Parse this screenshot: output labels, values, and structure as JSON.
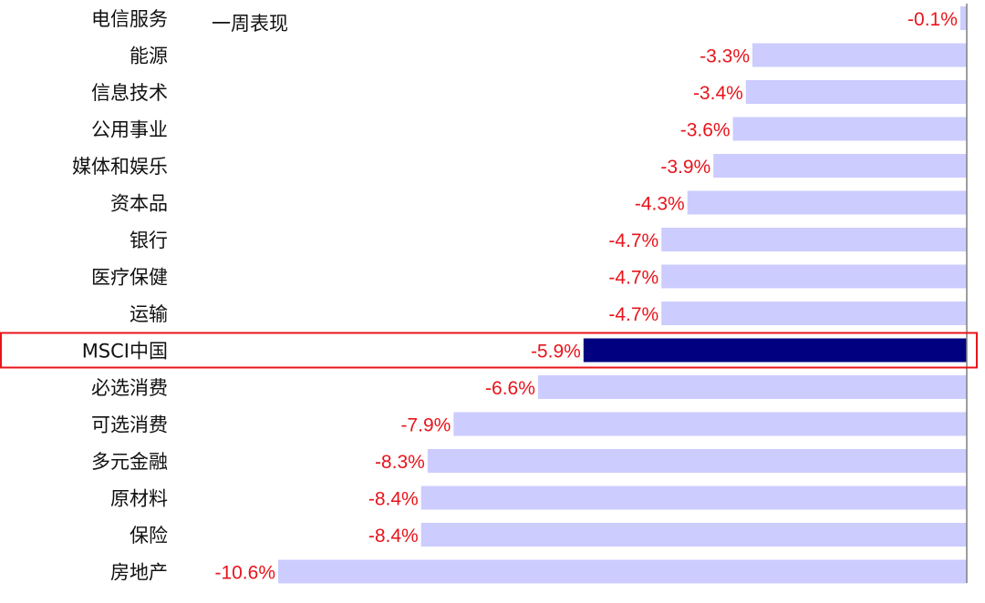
{
  "chart_data": {
    "type": "bar",
    "orientation": "horizontal",
    "title": "一周表现",
    "categories": [
      "电信服务",
      "能源",
      "信息技术",
      "公用事业",
      "媒体和娱乐",
      "资本品",
      "银行",
      "医疗保健",
      "运输",
      "MSCI中国",
      "必选消费",
      "可选消费",
      "多元金融",
      "原材料",
      "保险",
      "房地产"
    ],
    "values": [
      -0.1,
      -3.3,
      -3.4,
      -3.6,
      -3.9,
      -4.3,
      -4.7,
      -4.7,
      -4.7,
      -5.9,
      -6.6,
      -7.9,
      -8.3,
      -8.4,
      -8.4,
      -10.6
    ],
    "value_labels": [
      "-0.1%",
      "-3.3%",
      "-3.4%",
      "-3.6%",
      "-3.9%",
      "-4.3%",
      "-4.7%",
      "-4.7%",
      "-4.7%",
      "-5.9%",
      "-6.6%",
      "-7.9%",
      "-8.3%",
      "-8.4%",
      "-8.4%",
      "-10.6%"
    ],
    "unit": "%",
    "highlight_category": "MSCI中国",
    "xlim": [
      -10.6,
      0
    ],
    "grid": false,
    "legend": "none",
    "colors": {
      "bar": "#ccccff",
      "highlight_bar": "#000080",
      "value_label": "#e8141b",
      "category_label": "#111111",
      "axis": "#7f7f7f",
      "highlight_box": "#e8141b"
    }
  }
}
